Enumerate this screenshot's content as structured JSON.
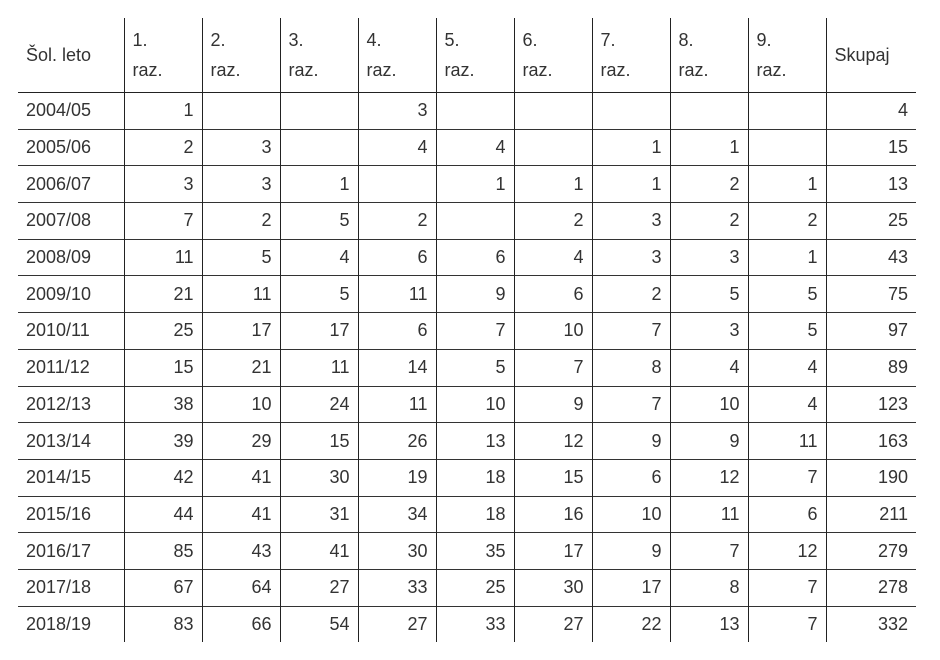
{
  "table": {
    "header": [
      "Šol. leto",
      "1. raz.",
      "2. raz.",
      "3. raz.",
      "4. raz.",
      "5. raz.",
      "6. raz.",
      "7. raz.",
      "8. raz.",
      "9. raz.",
      "Skupaj"
    ],
    "rows": [
      [
        "2004/05",
        1,
        null,
        null,
        3,
        null,
        null,
        null,
        null,
        null,
        4
      ],
      [
        "2005/06",
        2,
        3,
        null,
        4,
        4,
        null,
        1,
        1,
        null,
        15
      ],
      [
        "2006/07",
        3,
        3,
        1,
        null,
        1,
        1,
        1,
        2,
        1,
        13
      ],
      [
        "2007/08",
        7,
        2,
        5,
        2,
        null,
        2,
        3,
        2,
        2,
        25
      ],
      [
        "2008/09",
        11,
        5,
        4,
        6,
        6,
        4,
        3,
        3,
        1,
        43
      ],
      [
        "2009/10",
        21,
        11,
        5,
        11,
        9,
        6,
        2,
        5,
        5,
        75
      ],
      [
        "2010/11",
        25,
        17,
        17,
        6,
        7,
        10,
        7,
        3,
        5,
        97
      ],
      [
        "2011/12",
        15,
        21,
        11,
        14,
        5,
        7,
        8,
        4,
        4,
        89
      ],
      [
        "2012/13",
        38,
        10,
        24,
        11,
        10,
        9,
        7,
        10,
        4,
        123
      ],
      [
        "2013/14",
        39,
        29,
        15,
        26,
        13,
        12,
        9,
        9,
        11,
        163
      ],
      [
        "2014/15",
        42,
        41,
        30,
        19,
        18,
        15,
        6,
        12,
        7,
        190
      ],
      [
        "2015/16",
        44,
        41,
        31,
        34,
        18,
        16,
        10,
        11,
        6,
        211
      ],
      [
        "2016/17",
        85,
        43,
        41,
        30,
        35,
        17,
        9,
        7,
        12,
        279
      ],
      [
        "2017/18",
        67,
        64,
        27,
        33,
        25,
        30,
        17,
        8,
        7,
        278
      ],
      [
        "2018/19",
        83,
        66,
        54,
        27,
        33,
        27,
        22,
        13,
        7,
        332
      ]
    ]
  }
}
